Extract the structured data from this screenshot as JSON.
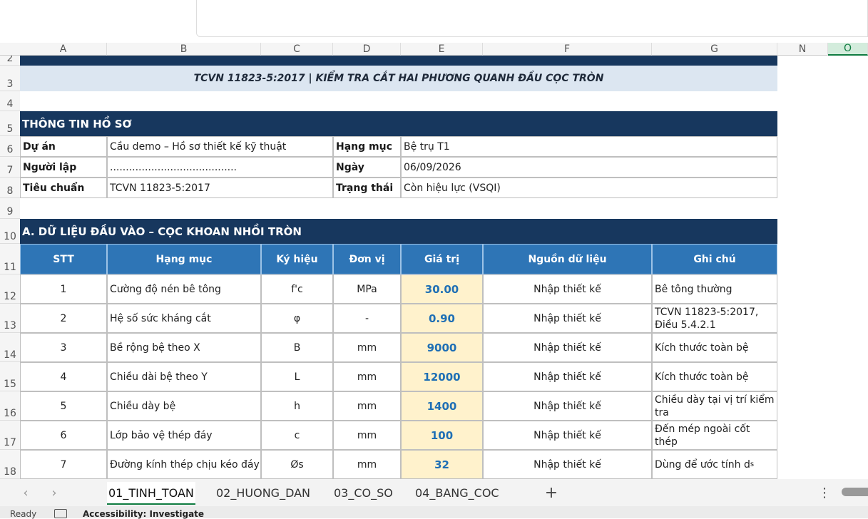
{
  "column_headers": [
    "A",
    "B",
    "C",
    "D",
    "E",
    "F",
    "G",
    "N",
    "O"
  ],
  "row_numbers": [
    "2",
    "3",
    "4",
    "5",
    "6",
    "7",
    "8",
    "9",
    "10",
    "11",
    "12",
    "13",
    "14",
    "15",
    "16",
    "17",
    "18"
  ],
  "title": "TCVN 11823-5:2017 | KIỂM TRA CẮT HAI PHƯƠNG QUANH ĐẦU CỌC TRÒN",
  "info": {
    "heading": "THÔNG TIN HỒ SƠ",
    "rows": [
      [
        "Dự án",
        "Cầu demo – Hồ sơ thiết kế kỹ thuật",
        "Hạng mục",
        "Bệ trụ T1"
      ],
      [
        "Người lập",
        "........................................",
        "Ngày",
        "06/09/2026"
      ],
      [
        "Tiêu chuẩn",
        "TCVN 11823-5:2017",
        "Trạng thái",
        "Còn hiệu lực (VSQI)"
      ]
    ]
  },
  "input": {
    "heading": "A. DỮ LIỆU ĐẦU VÀO – CỌC KHOAN NHỒI TRÒN",
    "columns": [
      "STT",
      "Hạng mục",
      "Ký hiệu",
      "Đơn vị",
      "Giá trị",
      "Nguồn dữ liệu",
      "Ghi chú"
    ],
    "rows": [
      [
        "1",
        "Cường độ nén bê tông",
        "f'c",
        "MPa",
        "30.00",
        "Nhập thiết kế",
        "Bê tông thường"
      ],
      [
        "2",
        "Hệ số sức kháng cắt",
        "φ",
        "-",
        "0.90",
        "Nhập thiết kế",
        "TCVN 11823-5:2017, Điều 5.4.2.1"
      ],
      [
        "3",
        "Bề rộng bệ theo X",
        "B",
        "mm",
        "9000",
        "Nhập thiết kế",
        "Kích thước toàn bệ"
      ],
      [
        "4",
        "Chiều dài bệ theo Y",
        "L",
        "mm",
        "12000",
        "Nhập thiết kế",
        "Kích thước toàn bệ"
      ],
      [
        "5",
        "Chiều dày bệ",
        "h",
        "mm",
        "1400",
        "Nhập thiết kế",
        "Chiều dày tại vị trí kiểm tra"
      ],
      [
        "6",
        "Lớp bảo vệ thép đáy",
        "c",
        "mm",
        "100",
        "Nhập thiết kế",
        "Đến mép ngoài cốt thép"
      ],
      [
        "7",
        "Đường kính thép chịu kéo đáy",
        "Øs",
        "mm",
        "32",
        "Nhập thiết kế",
        "Dùng để ước tính d"
      ]
    ],
    "note_subscript": "s"
  },
  "tabs": [
    "01_TINH_TOAN",
    "02_HUONG_DAN",
    "03_CO_SO",
    "04_BANG_COC"
  ],
  "status": {
    "ready": "Ready",
    "accessibility": "Accessibility: Investigate"
  }
}
